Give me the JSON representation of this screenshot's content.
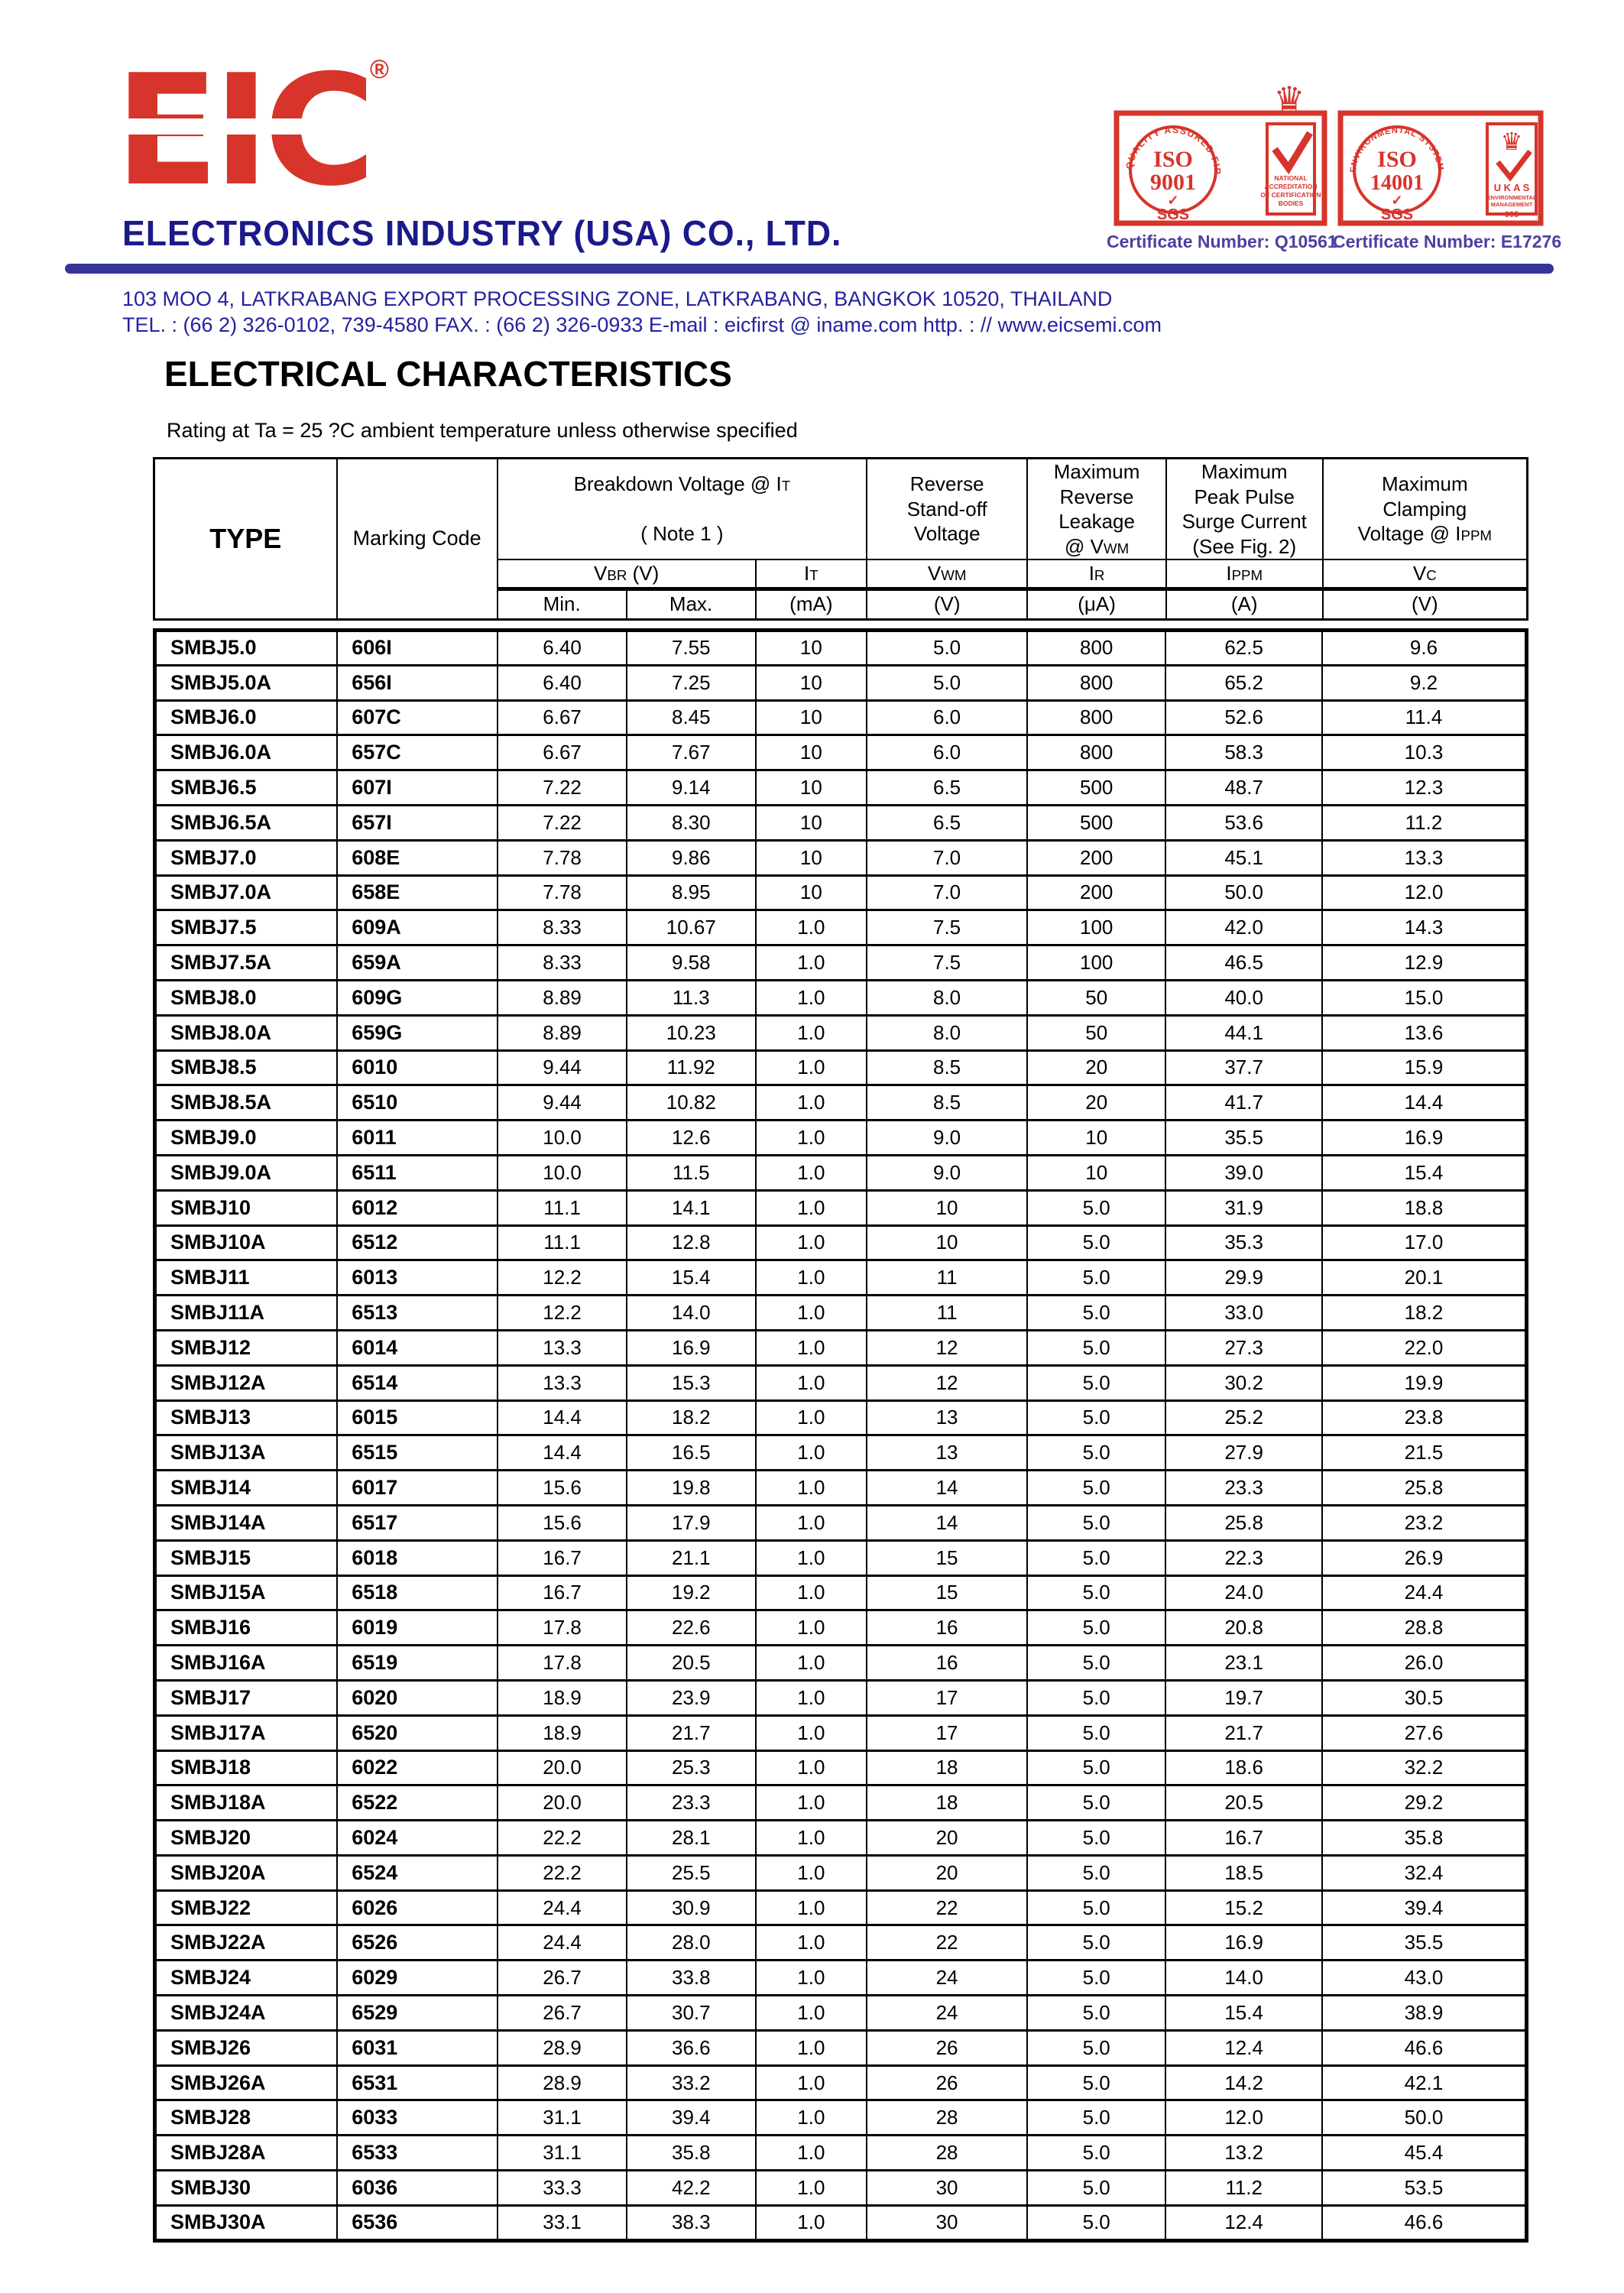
{
  "brand": {
    "logo_text": "EIC",
    "registered": "®",
    "company": "ELECTRONICS  INDUSTRY  (USA)  CO., LTD.",
    "address": "103  MOO 4,  LATKRABANG EXPORT PROCESSING ZONE,  LATKRABANG,  BANGKOK  10520,  THAILAND",
    "contact": "TEL. : (66 2) 326-0102,  739-4580    FAX. : (66 2) 326-0933   E-mail : eicfirst @ iname.com   http. : // www.eicsemi.com",
    "red": "#d7342b",
    "navy": "#1b1a8a",
    "bar_blue": "#34349c"
  },
  "badges": {
    "iso9001": {
      "arc": "QUALITY ASSURED FIRM",
      "iso": "ISO",
      "number": "9001",
      "check": "✓",
      "sgs": "SGS",
      "crown": "♛",
      "side1": "NATIONAL",
      "side2": "ACCREDITATION",
      "side3": "OF CERTIFICATION",
      "side4": "BODIES",
      "cert": "Certificate Number: Q10561"
    },
    "iso14001": {
      "arc": "ENVIRONMENTAL SYSTEM",
      "iso": "ISO",
      "number": "14001",
      "check": "✓",
      "sgs": "SGS",
      "crown": "♛",
      "ukas": "U K A S",
      "side1": "ENVIRONMENTAL",
      "side2": "MANAGEMENT",
      "side_num": "005",
      "cert": "Certificate Number: E17276"
    }
  },
  "section": {
    "title": "ELECTRICAL CHARACTERISTICS",
    "subtitle": "Rating at Ta = 25 ?C ambient temperature unless otherwise specified"
  },
  "table": {
    "col_widths_pct": [
      13.3,
      11.7,
      9.4,
      9.4,
      8.1,
      11.7,
      10.1,
      11.4,
      14.9
    ],
    "header": {
      "type": "TYPE",
      "marking": "Marking Code",
      "breakdown": "Breakdown Voltage @  I~T~\n\n( Note 1 )",
      "standoff": "Reverse\nStand-off\nVoltage",
      "leakage": "Maximum\nReverse\nLeakage\n@ V~WM~",
      "surge": "Maximum\nPeak Pulse\nSurge Current\n(See Fig. 2)",
      "clamping": "Maximum\nClamping\nVoltage @ I~PPM~",
      "vbr": "V~BR~  (V)",
      "it": "I~T~",
      "vwm": "V~WM~",
      "ir": "I~R~",
      "ippm": "I~PPM~",
      "vc": "V~C~",
      "min": "Min.",
      "max": "Max.",
      "unit_ma": "(mA)",
      "unit_v1": "(V)",
      "unit_ua": "(μA)",
      "unit_a": "(A)",
      "unit_v2": "(V)"
    },
    "rows": [
      [
        "SMBJ5.0",
        "606I",
        "6.40",
        "7.55",
        "10",
        "5.0",
        "800",
        "62.5",
        "9.6"
      ],
      [
        "SMBJ5.0A",
        "656I",
        "6.40",
        "7.25",
        "10",
        "5.0",
        "800",
        "65.2",
        "9.2"
      ],
      [
        "SMBJ6.0",
        "607C",
        "6.67",
        "8.45",
        "10",
        "6.0",
        "800",
        "52.6",
        "11.4"
      ],
      [
        "SMBJ6.0A",
        "657C",
        "6.67",
        "7.67",
        "10",
        "6.0",
        "800",
        "58.3",
        "10.3"
      ],
      [
        "SMBJ6.5",
        "607I",
        "7.22",
        "9.14",
        "10",
        "6.5",
        "500",
        "48.7",
        "12.3"
      ],
      [
        "SMBJ6.5A",
        "657I",
        "7.22",
        "8.30",
        "10",
        "6.5",
        "500",
        "53.6",
        "11.2"
      ],
      [
        "SMBJ7.0",
        "608E",
        "7.78",
        "9.86",
        "10",
        "7.0",
        "200",
        "45.1",
        "13.3"
      ],
      [
        "SMBJ7.0A",
        "658E",
        "7.78",
        "8.95",
        "10",
        "7.0",
        "200",
        "50.0",
        "12.0"
      ],
      [
        "SMBJ7.5",
        "609A",
        "8.33",
        "10.67",
        "1.0",
        "7.5",
        "100",
        "42.0",
        "14.3"
      ],
      [
        "SMBJ7.5A",
        "659A",
        "8.33",
        "9.58",
        "1.0",
        "7.5",
        "100",
        "46.5",
        "12.9"
      ],
      [
        "SMBJ8.0",
        "609G",
        "8.89",
        "11.3",
        "1.0",
        "8.0",
        "50",
        "40.0",
        "15.0"
      ],
      [
        "SMBJ8.0A",
        "659G",
        "8.89",
        "10.23",
        "1.0",
        "8.0",
        "50",
        "44.1",
        "13.6"
      ],
      [
        "SMBJ8.5",
        "6010",
        "9.44",
        "11.92",
        "1.0",
        "8.5",
        "20",
        "37.7",
        "15.9"
      ],
      [
        "SMBJ8.5A",
        "6510",
        "9.44",
        "10.82",
        "1.0",
        "8.5",
        "20",
        "41.7",
        "14.4"
      ],
      [
        "SMBJ9.0",
        "6011",
        "10.0",
        "12.6",
        "1.0",
        "9.0",
        "10",
        "35.5",
        "16.9"
      ],
      [
        "SMBJ9.0A",
        "6511",
        "10.0",
        "11.5",
        "1.0",
        "9.0",
        "10",
        "39.0",
        "15.4"
      ],
      [
        "SMBJ10",
        "6012",
        "11.1",
        "14.1",
        "1.0",
        "10",
        "5.0",
        "31.9",
        "18.8"
      ],
      [
        "SMBJ10A",
        "6512",
        "11.1",
        "12.8",
        "1.0",
        "10",
        "5.0",
        "35.3",
        "17.0"
      ],
      [
        "SMBJ11",
        "6013",
        "12.2",
        "15.4",
        "1.0",
        "11",
        "5.0",
        "29.9",
        "20.1"
      ],
      [
        "SMBJ11A",
        "6513",
        "12.2",
        "14.0",
        "1.0",
        "11",
        "5.0",
        "33.0",
        "18.2"
      ],
      [
        "SMBJ12",
        "6014",
        "13.3",
        "16.9",
        "1.0",
        "12",
        "5.0",
        "27.3",
        "22.0"
      ],
      [
        "SMBJ12A",
        "6514",
        "13.3",
        "15.3",
        "1.0",
        "12",
        "5.0",
        "30.2",
        "19.9"
      ],
      [
        "SMBJ13",
        "6015",
        "14.4",
        "18.2",
        "1.0",
        "13",
        "5.0",
        "25.2",
        "23.8"
      ],
      [
        "SMBJ13A",
        "6515",
        "14.4",
        "16.5",
        "1.0",
        "13",
        "5.0",
        "27.9",
        "21.5"
      ],
      [
        "SMBJ14",
        "6017",
        "15.6",
        "19.8",
        "1.0",
        "14",
        "5.0",
        "23.3",
        "25.8"
      ],
      [
        "SMBJ14A",
        "6517",
        "15.6",
        "17.9",
        "1.0",
        "14",
        "5.0",
        "25.8",
        "23.2"
      ],
      [
        "SMBJ15",
        "6018",
        "16.7",
        "21.1",
        "1.0",
        "15",
        "5.0",
        "22.3",
        "26.9"
      ],
      [
        "SMBJ15A",
        "6518",
        "16.7",
        "19.2",
        "1.0",
        "15",
        "5.0",
        "24.0",
        "24.4"
      ],
      [
        "SMBJ16",
        "6019",
        "17.8",
        "22.6",
        "1.0",
        "16",
        "5.0",
        "20.8",
        "28.8"
      ],
      [
        "SMBJ16A",
        "6519",
        "17.8",
        "20.5",
        "1.0",
        "16",
        "5.0",
        "23.1",
        "26.0"
      ],
      [
        "SMBJ17",
        "6020",
        "18.9",
        "23.9",
        "1.0",
        "17",
        "5.0",
        "19.7",
        "30.5"
      ],
      [
        "SMBJ17A",
        "6520",
        "18.9",
        "21.7",
        "1.0",
        "17",
        "5.0",
        "21.7",
        "27.6"
      ],
      [
        "SMBJ18",
        "6022",
        "20.0",
        "25.3",
        "1.0",
        "18",
        "5.0",
        "18.6",
        "32.2"
      ],
      [
        "SMBJ18A",
        "6522",
        "20.0",
        "23.3",
        "1.0",
        "18",
        "5.0",
        "20.5",
        "29.2"
      ],
      [
        "SMBJ20",
        "6024",
        "22.2",
        "28.1",
        "1.0",
        "20",
        "5.0",
        "16.7",
        "35.8"
      ],
      [
        "SMBJ20A",
        "6524",
        "22.2",
        "25.5",
        "1.0",
        "20",
        "5.0",
        "18.5",
        "32.4"
      ],
      [
        "SMBJ22",
        "6026",
        "24.4",
        "30.9",
        "1.0",
        "22",
        "5.0",
        "15.2",
        "39.4"
      ],
      [
        "SMBJ22A",
        "6526",
        "24.4",
        "28.0",
        "1.0",
        "22",
        "5.0",
        "16.9",
        "35.5"
      ],
      [
        "SMBJ24",
        "6029",
        "26.7",
        "33.8",
        "1.0",
        "24",
        "5.0",
        "14.0",
        "43.0"
      ],
      [
        "SMBJ24A",
        "6529",
        "26.7",
        "30.7",
        "1.0",
        "24",
        "5.0",
        "15.4",
        "38.9"
      ],
      [
        "SMBJ26",
        "6031",
        "28.9",
        "36.6",
        "1.0",
        "26",
        "5.0",
        "12.4",
        "46.6"
      ],
      [
        "SMBJ26A",
        "6531",
        "28.9",
        "33.2",
        "1.0",
        "26",
        "5.0",
        "14.2",
        "42.1"
      ],
      [
        "SMBJ28",
        "6033",
        "31.1",
        "39.4",
        "1.0",
        "28",
        "5.0",
        "12.0",
        "50.0"
      ],
      [
        "SMBJ28A",
        "6533",
        "31.1",
        "35.8",
        "1.0",
        "28",
        "5.0",
        "13.2",
        "45.4"
      ],
      [
        "SMBJ30",
        "6036",
        "33.3",
        "42.2",
        "1.0",
        "30",
        "5.0",
        "11.2",
        "53.5"
      ],
      [
        "SMBJ30A",
        "6536",
        "33.1",
        "38.3",
        "1.0",
        "30",
        "5.0",
        "12.4",
        "46.6"
      ]
    ]
  }
}
